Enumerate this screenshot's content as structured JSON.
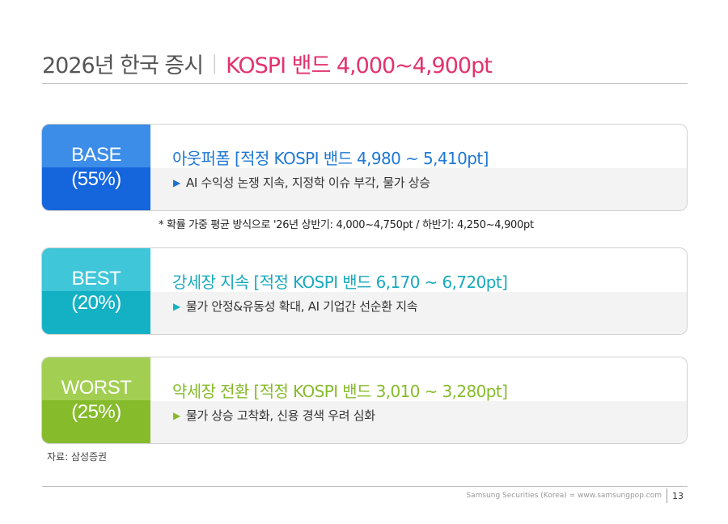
{
  "header": {
    "title_main": "2026년 한국 증시",
    "separator": "|",
    "title_accent": "KOSPI 밴드 4,000~4,900pt"
  },
  "scenarios": [
    {
      "label": "BASE",
      "probability": "(55%)",
      "headline": "아웃퍼폼 [적정 KOSPI 밴드 4,980 ~ 5,410pt]",
      "bullet_icon": "triangle-right-icon",
      "bullet": "AI 수익성 논쟁 지속, 지정학 이슈 부각, 물가 상승",
      "colors": {
        "label_top": "#3b8de8",
        "label_bottom": "#1565dc",
        "headline": "#1f78d4"
      }
    },
    {
      "label": "BEST",
      "probability": "(20%)",
      "headline": "강세장 지속 [적정 KOSPI 밴드 6,170 ~ 6,720pt]",
      "bullet_icon": "triangle-right-icon",
      "bullet": "물가 안정&유동성 확대, AI 기업간 선순환 지속",
      "colors": {
        "label_top": "#3fc6d9",
        "label_bottom": "#14b1c5",
        "headline": "#19a9bd"
      }
    },
    {
      "label": "WORST",
      "probability": "(25%)",
      "headline": "약세장 전환 [적정 KOSPI 밴드 3,010 ~ 3,280pt]",
      "bullet_icon": "triangle-right-icon",
      "bullet": "물가 상승 고착화, 신용 경색 우려 심화",
      "colors": {
        "label_top": "#a2cf52",
        "label_bottom": "#86bb2c",
        "headline": "#86bb2c"
      }
    }
  ],
  "footnote": "* 확률 가중 평균 방식으로 '26년 상반기: 4,000~4,750pt / 하반기: 4,250~4,900pt",
  "source": "자료: 삼성증권",
  "footer": {
    "company": "Samsung Securities (Korea) = www.samsungpop.com",
    "page_number": "13"
  }
}
